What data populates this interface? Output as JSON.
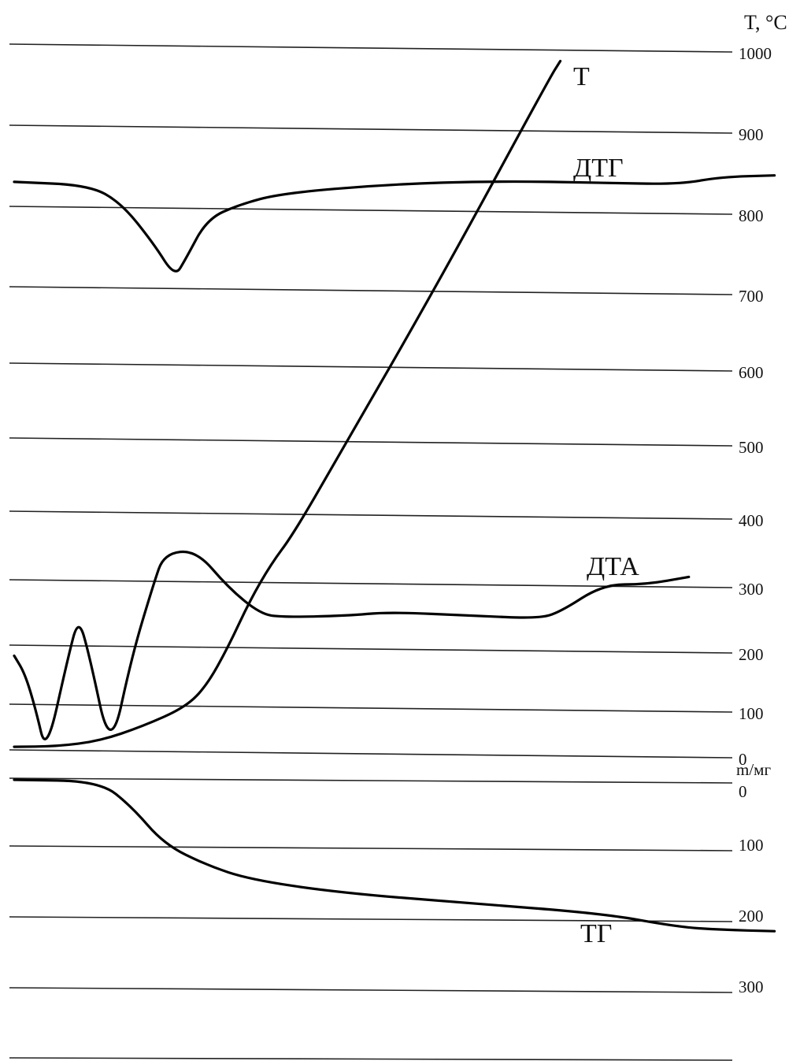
{
  "chart_data": {
    "type": "line",
    "title": "",
    "axis_title_temperature": "T, °C",
    "axis_title_mass": "m/мг",
    "grid": true,
    "temperature_ticks": [
      "1000",
      "900",
      "800",
      "700",
      "600",
      "500",
      "400",
      "300",
      "200",
      "100",
      "0"
    ],
    "mass_ticks": [
      "0",
      "100",
      "200",
      "300"
    ],
    "series": [
      {
        "name": "T",
        "unit": "°C",
        "points": [
          [
            0,
            17
          ],
          [
            4,
            18
          ],
          [
            8,
            30
          ],
          [
            12,
            62
          ],
          [
            16,
            103
          ],
          [
            18,
            140
          ],
          [
            20,
            205
          ],
          [
            22,
            275
          ],
          [
            24,
            330
          ],
          [
            26,
            372
          ],
          [
            30,
            474
          ],
          [
            40,
            720
          ],
          [
            50,
            964
          ],
          [
            51,
            985
          ]
        ]
      },
      {
        "name": "ДТГ",
        "points": [
          [
            0,
            836
          ],
          [
            7,
            832
          ],
          [
            10,
            810
          ],
          [
            13,
            760
          ],
          [
            15,
            718
          ],
          [
            16,
            740
          ],
          [
            18,
            790
          ],
          [
            21,
            808
          ],
          [
            25,
            822
          ],
          [
            35,
            833
          ],
          [
            45,
            837
          ],
          [
            55,
            835
          ],
          [
            62,
            833
          ],
          [
            66,
            842
          ],
          [
            71,
            844
          ]
        ]
      },
      {
        "name": "ДТА",
        "points": [
          [
            -13,
            190
          ],
          [
            -12,
            160
          ],
          [
            -11,
            100
          ],
          [
            -10,
            0
          ],
          [
            -8,
            -210
          ],
          [
            -7,
            -300
          ],
          [
            -6,
            -220
          ],
          [
            -4,
            0
          ],
          [
            -2,
            190
          ],
          [
            0,
            300
          ],
          [
            1,
            345
          ],
          [
            4,
            350
          ],
          [
            7,
            295
          ],
          [
            10,
            255
          ],
          [
            12,
            250
          ],
          [
            18,
            252
          ],
          [
            22,
            258
          ],
          [
            30,
            252
          ],
          [
            36,
            248
          ],
          [
            38,
            258
          ],
          [
            42,
            300
          ],
          [
            46,
            300
          ],
          [
            50,
            311
          ]
        ]
      },
      {
        "name": "ТГ",
        "unit": "мг",
        "points": [
          [
            0,
            0
          ],
          [
            8,
            2
          ],
          [
            11,
            40
          ],
          [
            14,
            95
          ],
          [
            18,
            125
          ],
          [
            22,
            145
          ],
          [
            30,
            163
          ],
          [
            42,
            178
          ],
          [
            55,
            193
          ],
          [
            62,
            212
          ],
          [
            66,
            216
          ],
          [
            71,
            218
          ]
        ]
      }
    ]
  }
}
